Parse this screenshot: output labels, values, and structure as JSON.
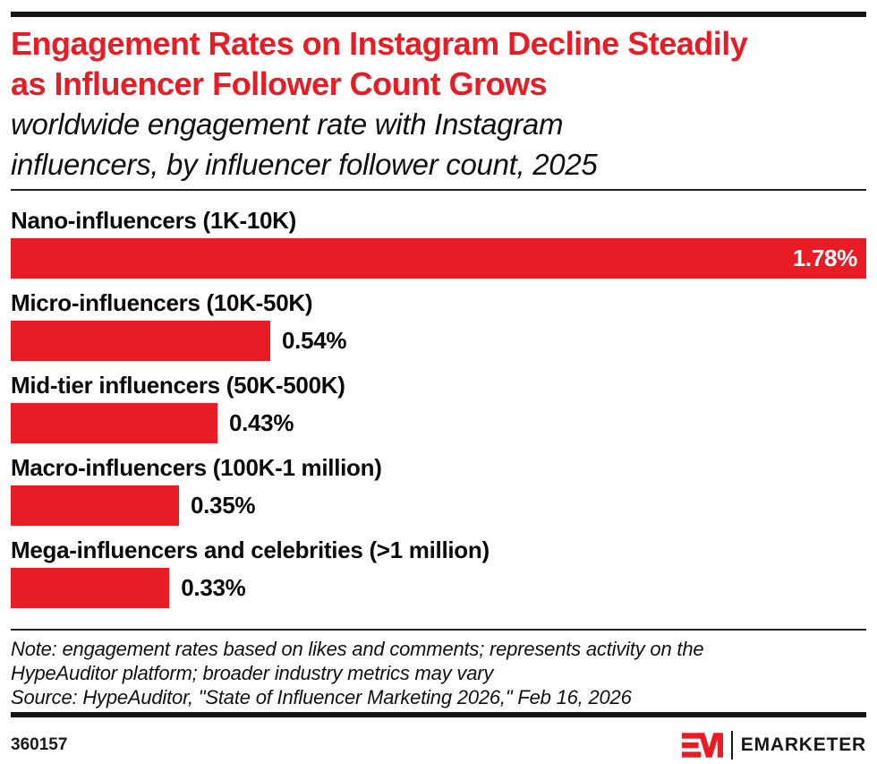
{
  "header": {
    "accent_color": "#E81C24",
    "title_line1": "Engagement Rates on Instagram Decline Steadily",
    "title_line2": "as Influencer Follower Count Grows",
    "subtitle_line1": "worldwide engagement rate with Instagram",
    "subtitle_line2": "influencers, by influencer follower count, 2025"
  },
  "chart_data": {
    "type": "bar",
    "orientation": "horizontal",
    "title": "Engagement Rates on Instagram Decline Steadily as Influencer Follower Count Grows",
    "subtitle": "worldwide engagement rate with Instagram influencers, by influencer follower count, 2025",
    "categories": [
      "Nano-influencers (1K-10K)",
      "Micro-influencers (10K-50K)",
      "Mid-tier influencers (50K-500K)",
      "Macro-influencers (100K-1 million)",
      "Mega-influencers and celebrities (>1 million)"
    ],
    "values": [
      1.78,
      0.54,
      0.43,
      0.35,
      0.33
    ],
    "value_labels": [
      "1.78%",
      "0.54%",
      "0.43%",
      "0.35%",
      "0.33%"
    ],
    "xlim": [
      0,
      1.78
    ],
    "bar_color": "#E81C24",
    "grid": false,
    "legend": false,
    "value_label_style": "first bar labeled inside-right in white; remaining bars labeled outside-right in black"
  },
  "footer": {
    "note_line1": "Note: engagement rates based on likes and comments; represents activity on the",
    "note_line2": "HypeAuditor platform; broader industry metrics may vary",
    "source_line": "Source: HypeAuditor, \"State of Influencer Marketing 2026,\" Feb 16, 2026",
    "chart_number": "360157",
    "brand_name": "EMARKETER",
    "brand_mark": "em-logo-icon"
  }
}
